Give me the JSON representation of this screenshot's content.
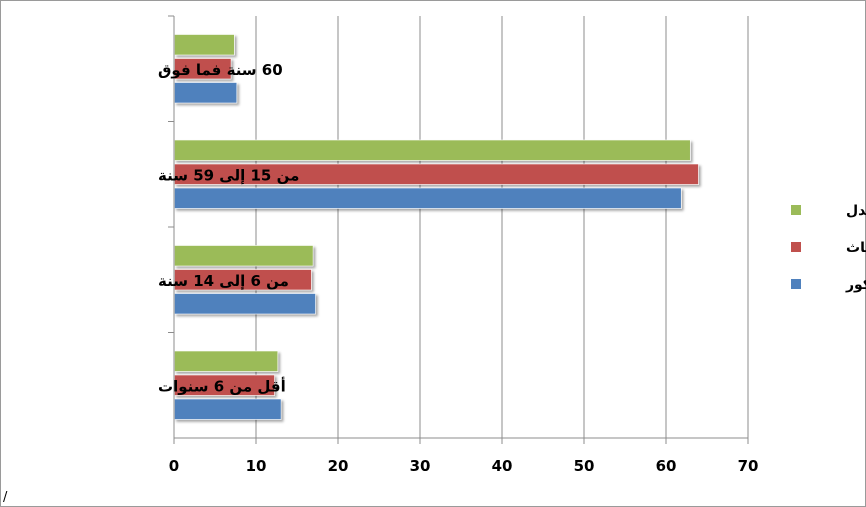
{
  "chart_data": {
    "type": "bar",
    "orientation": "horizontal",
    "categories": [
      "أقل من 6 سنوات",
      "من 6 إلى 14 سنة",
      "من 15 إلى 59 سنة",
      "60 سنة فما فوق"
    ],
    "series": [
      {
        "name": "الذكور",
        "color": "#4F81BD",
        "values": [
          13,
          17.2,
          61.8,
          7.6
        ]
      },
      {
        "name": "الإناث",
        "color": "#C0504D",
        "values": [
          12.2,
          16.7,
          63.9,
          6.9
        ]
      },
      {
        "name": "المعدل",
        "color": "#9BBB59",
        "values": [
          12.6,
          16.9,
          62.9,
          7.3
        ]
      }
    ],
    "xlim": [
      0,
      70
    ],
    "xticks": [
      0,
      10,
      20,
      30,
      40,
      50,
      60,
      70
    ],
    "title": "",
    "xlabel": "",
    "ylabel": "",
    "grid": true,
    "legend_position": "right",
    "stray_mark": "/"
  }
}
